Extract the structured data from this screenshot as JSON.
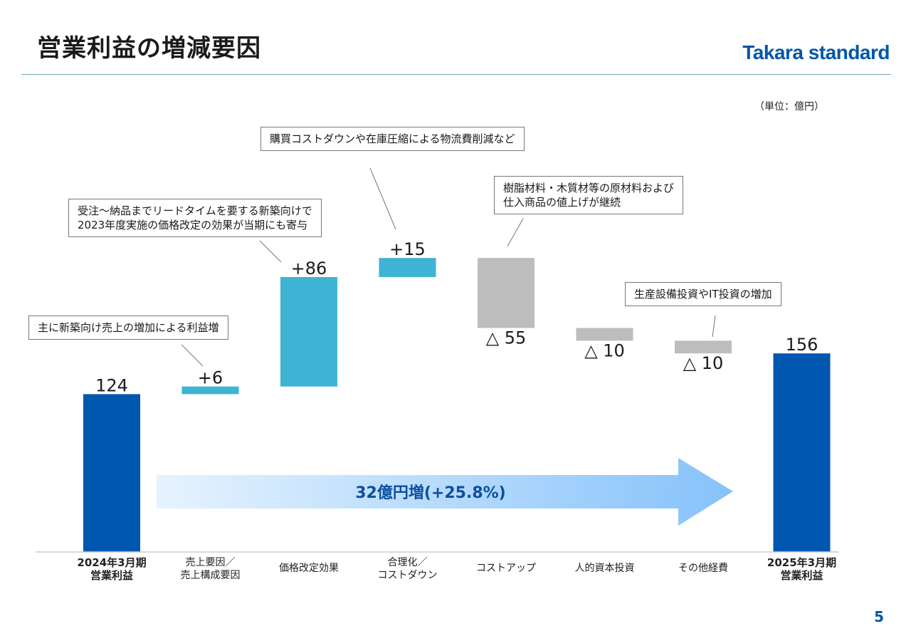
{
  "header": {
    "title": "営業利益の増減要因",
    "logo": "Takara standard"
  },
  "unit_label": "（単位：億円）",
  "page_number": "5",
  "colors": {
    "total_bar": "#0057b0",
    "increase_bar": "#3fb3d3",
    "decrease_bar": "#bdbdbd",
    "arrow_start": "#e6f3fe",
    "arrow_end": "#86c2fb",
    "arrow_text": "#0d4fa0"
  },
  "callouts": [
    {
      "id": "sales",
      "text": "主に新築向け売上の増加による利益増"
    },
    {
      "id": "price",
      "text": "受注～納品までリードタイムを要する新築向けで\n2023年度実施の価格改定の効果が当期にも寄与"
    },
    {
      "id": "rationalize",
      "text": "購買コストダウンや在庫圧縮による物流費削減など"
    },
    {
      "id": "cost",
      "text": "樹脂材料・木質材等の原材料および\n仕入商品の値上げが継続"
    },
    {
      "id": "other",
      "text": "生産設備投資やIT投資の増加"
    }
  ],
  "arrow_text": "32億円増(+25.8%)",
  "chart_data": {
    "type": "bar",
    "subtype": "waterfall",
    "title": "",
    "xlabel": "",
    "ylabel": "",
    "ylim": [
      0,
      270
    ],
    "grid": false,
    "legend": "none",
    "categories": [
      "2024年3月期\n営業利益",
      "売上要因／\n売上構成要因",
      "価格改定効果",
      "合理化／\nコストダウン",
      "コストアップ",
      "人的資本投資",
      "その他経費",
      "2025年3月期\n営業利益"
    ],
    "values": [
      124,
      6,
      86,
      15,
      -55,
      -10,
      -10,
      156
    ],
    "kinds": [
      "total",
      "increase",
      "increase",
      "increase",
      "decrease",
      "decrease",
      "decrease",
      "total"
    ],
    "data_labels": [
      "124",
      "+6",
      "+86",
      "+15",
      "△ 55",
      "△ 10",
      "△ 10",
      "156"
    ]
  }
}
